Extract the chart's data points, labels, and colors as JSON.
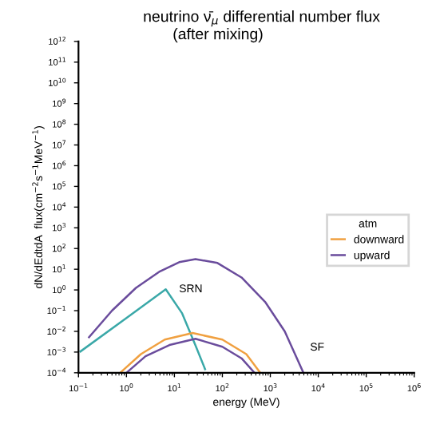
{
  "chart_data": {
    "type": "line",
    "title": "neutrino ν̄$_{μ}$ differential number flux",
    "subtitle": "(after mixing)",
    "xlabel": "energy (MeV)",
    "ylabel": "dN/dEdtdA  flux(cm$^{−2}$s$^{−1}$MeV$^{−1}$)",
    "legend_title": "atm",
    "log": "xy",
    "grid": false,
    "legend": "right",
    "marker": "none",
    "line_style": "solid",
    "xlim": [
      0.1,
      1000000
    ],
    "ylim": [
      0.0001,
      1000000000000
    ],
    "xticks": [
      {
        "value": 0.1,
        "label": "10$^{−1}$"
      },
      {
        "value": 1,
        "label": "10$^{0}$"
      },
      {
        "value": 10,
        "label": "10$^{1}$"
      },
      {
        "value": 100,
        "label": "10$^{2}$"
      },
      {
        "value": 1000,
        "label": "10$^{3}$"
      },
      {
        "value": 10000,
        "label": "10$^{4}$"
      },
      {
        "value": 100000,
        "label": "10$^{5}$"
      },
      {
        "value": 1000000,
        "label": "10$^{6}$"
      }
    ],
    "yticks": [
      {
        "value": 0.0001,
        "label": "10$^{−4}$"
      },
      {
        "value": 0.001,
        "label": "10$^{−3}$"
      },
      {
        "value": 0.01,
        "label": "10$^{−2}$"
      },
      {
        "value": 0.1,
        "label": "10$^{−1}$"
      },
      {
        "value": 1,
        "label": "10$^{0}$"
      },
      {
        "value": 10,
        "label": "10$^{1}$"
      },
      {
        "value": 100,
        "label": "10$^{2}$"
      },
      {
        "value": 1000,
        "label": "10$^{3}$"
      },
      {
        "value": 10000,
        "label": "10$^{4}$"
      },
      {
        "value": 100000,
        "label": "10$^{5}$"
      },
      {
        "value": 1000000,
        "label": "10$^{6}$"
      },
      {
        "value": 10000000,
        "label": "10$^{7}$"
      },
      {
        "value": 100000000,
        "label": "10$^{8}$"
      },
      {
        "value": 1000000000,
        "label": "10$^{9}$"
      },
      {
        "value": 10000000000,
        "label": "10$^{10}$"
      },
      {
        "value": 100000000000,
        "label": "10$^{11}$"
      },
      {
        "value": 1000000000000,
        "label": "10$^{12}$"
      }
    ],
    "series": [
      {
        "color": "#6a4c9c",
        "x": [
          0.166,
          0.5,
          1.58,
          5.0,
          12.6,
          27.5,
          79,
          251,
          794,
          2000,
          4900
        ],
        "values": [
          0.0052,
          0.1,
          1.26,
          7.9,
          22,
          31,
          20,
          4,
          0.25,
          0.01,
          0.0001
        ]
      },
      {
        "color": "#3aa8a8",
        "x": [
          0.11,
          1,
          6.6,
          14.5,
          27.5,
          43.6
        ],
        "values": [
          0.00107,
          0.044,
          1.07,
          0.074,
          0.0021,
          0.00015
        ]
      },
      {
        "name": "downward",
        "color": "#f0a040",
        "x": [
          0.74,
          2,
          6.3,
          24,
          100,
          316,
          617
        ],
        "values": [
          0.0001,
          0.00079,
          0.004,
          0.0083,
          0.004,
          0.00079,
          0.0001
        ]
      },
      {
        "name": "upward",
        "color": "#6a4c9c",
        "x": [
          1,
          2.5,
          7.9,
          27.5,
          100,
          251,
          468
        ],
        "values": [
          0.0001,
          0.00063,
          0.0022,
          0.0044,
          0.0018,
          0.0005,
          0.0001
        ]
      }
    ],
    "annotations": [
      "SRN",
      "SF"
    ]
  }
}
